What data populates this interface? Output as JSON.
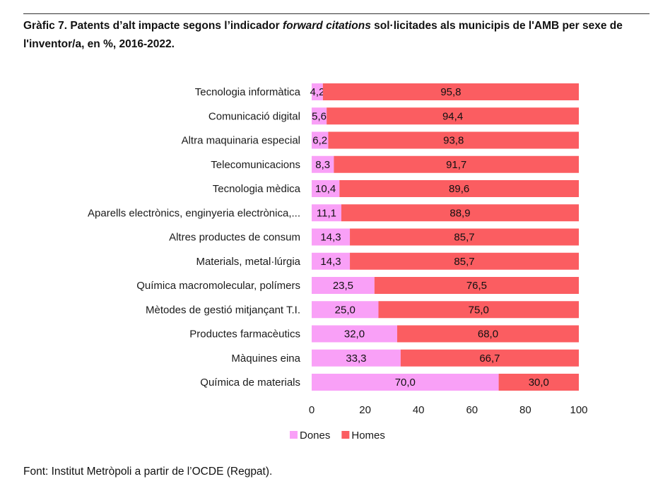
{
  "title": {
    "part1": "Gràfic 7. Patents d’alt impacte segons l’indicador ",
    "italic": "forward citations",
    "part2": " sol·licitades als municipis de l'AMB per sexe de l'inventor/a, en %, 2016-2022."
  },
  "source": "Font: Institut Metròpoli a partir de l’OCDE (Regpat).",
  "colors": {
    "dones": "#f9a0f7",
    "homes": "#fb5d61"
  },
  "chart_data": {
    "type": "bar",
    "orientation": "horizontal",
    "stacked": true,
    "title": "Gràfic 7. Patents d’alt impacte segons l’indicador forward citations sol·licitades als municipis de l'AMB per sexe de l'inventor/a, en %, 2016-2022.",
    "xlabel": "",
    "ylabel": "",
    "xlim": [
      0,
      100
    ],
    "xticks": [
      "0",
      "20",
      "40",
      "60",
      "80",
      "100"
    ],
    "grid": false,
    "legend": "bottom",
    "categories": [
      "Tecnologia informàtica",
      "Comunicació digital",
      "Altra maquinaria especial",
      "Telecomunicacions",
      "Tecnologia mèdica",
      "Aparells electrònics, enginyeria electrònica,...",
      "Altres productes de consum",
      "Materials, metal·lúrgia",
      "Química macromolecular, polímers",
      "Mètodes de gestió mitjançant T.I.",
      "Productes farmacèutics",
      "Màquines eina",
      "Química de materials"
    ],
    "series": [
      {
        "name": "Dones",
        "values": [
          4.2,
          5.6,
          6.2,
          8.3,
          10.4,
          11.1,
          14.3,
          14.3,
          23.5,
          25.0,
          32.0,
          33.3,
          70.0
        ],
        "labels": [
          "4,2",
          "5,6",
          "6,2",
          "8,3",
          "10,4",
          "11,1",
          "14,3",
          "14,3",
          "23,5",
          "25,0",
          "32,0",
          "33,3",
          "70,0"
        ]
      },
      {
        "name": "Homes",
        "values": [
          95.8,
          94.4,
          93.8,
          91.7,
          89.6,
          88.9,
          85.7,
          85.7,
          76.5,
          75.0,
          68.0,
          66.7,
          30.0
        ],
        "labels": [
          "95,8",
          "94,4",
          "93,8",
          "91,7",
          "89,6",
          "88,9",
          "85,7",
          "85,7",
          "76,5",
          "75,0",
          "68,0",
          "66,7",
          "30,0"
        ]
      }
    ]
  }
}
